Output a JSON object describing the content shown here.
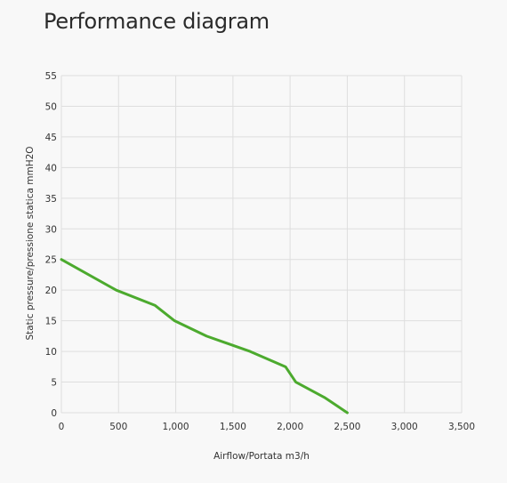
{
  "header": {
    "title": "Performance diagram"
  },
  "chart_data": {
    "type": "line",
    "title": "Performance diagram",
    "xlabel": "Airflow/Portata m3/h",
    "ylabel": "Static pressure/pressione statica mmH2O",
    "xlim": [
      0,
      3500
    ],
    "ylim": [
      0,
      55
    ],
    "x_ticks": [
      0,
      500,
      1000,
      1500,
      2000,
      2500,
      3000,
      3500
    ],
    "x_tick_labels": [
      "0",
      "500",
      "1,000",
      "1,500",
      "2,000",
      "2,500",
      "3,000",
      "3,500"
    ],
    "y_ticks": [
      0,
      5,
      10,
      15,
      20,
      25,
      30,
      35,
      40,
      45,
      50,
      55
    ],
    "y_tick_labels": [
      "0",
      "5",
      "10",
      "15",
      "20",
      "25",
      "30",
      "35",
      "40",
      "45",
      "50",
      "55"
    ],
    "grid": true,
    "legend": "none",
    "series": [
      {
        "color": "#4caa2e",
        "x": [
          0,
          480,
          820,
          990,
          1270,
          1650,
          1960,
          2050,
          2300,
          2500
        ],
        "y": [
          25,
          20,
          17.5,
          15,
          12.5,
          10,
          7.5,
          5,
          2.5,
          0
        ]
      }
    ]
  }
}
